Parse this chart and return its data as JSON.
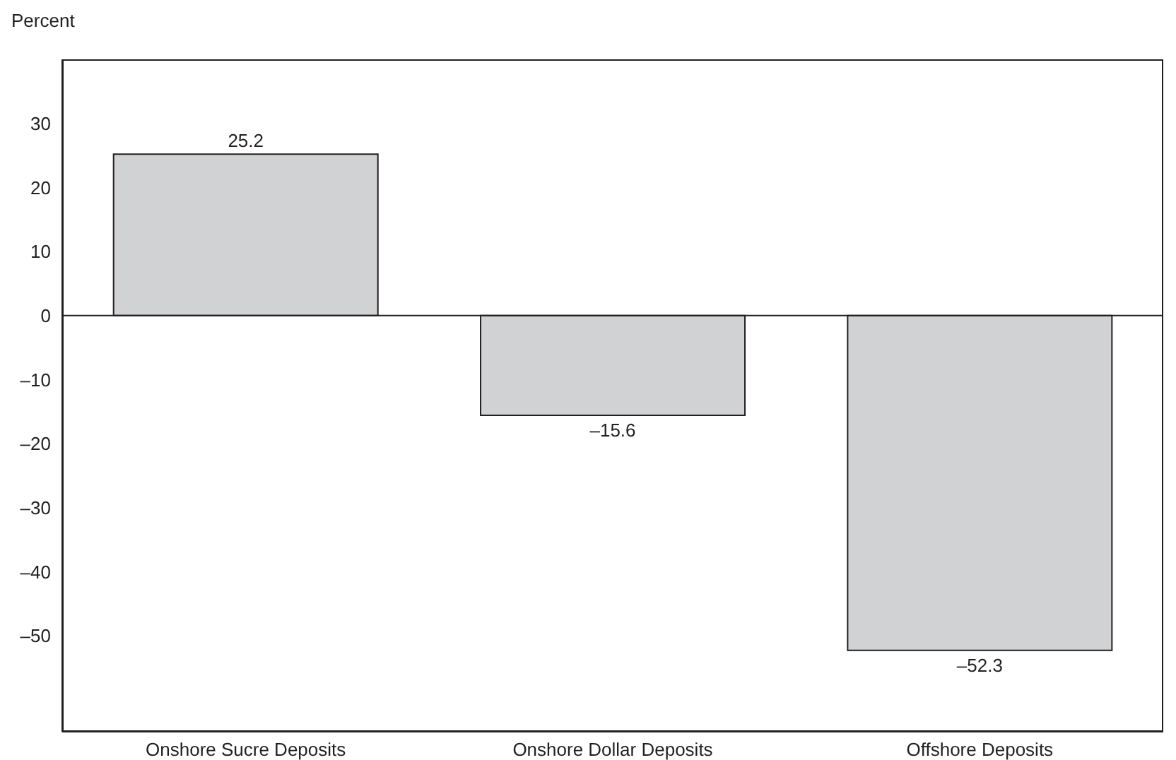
{
  "chart_data": {
    "type": "bar",
    "ylabel": "Percent",
    "categories": [
      "Onshore Sucre Deposits",
      "Onshore Dollar Deposits",
      "Offshore Deposits"
    ],
    "values": [
      25.2,
      -15.6,
      -52.3
    ],
    "value_labels": [
      "25.2",
      "–15.6",
      "–52.3"
    ],
    "color": "#d1d2d4",
    "ylim": [
      -65,
      40
    ],
    "yticks": [
      {
        "value": -50,
        "label": "–50"
      },
      {
        "value": -40,
        "label": "–40"
      },
      {
        "value": -30,
        "label": "–30"
      },
      {
        "value": -20,
        "label": "–20"
      },
      {
        "value": -10,
        "label": "–10"
      },
      0,
      10,
      20,
      30
    ],
    "ref_lines": [
      {
        "axis": "y",
        "value": 0,
        "color": "#231f20"
      }
    ],
    "tick_labels": true
  }
}
